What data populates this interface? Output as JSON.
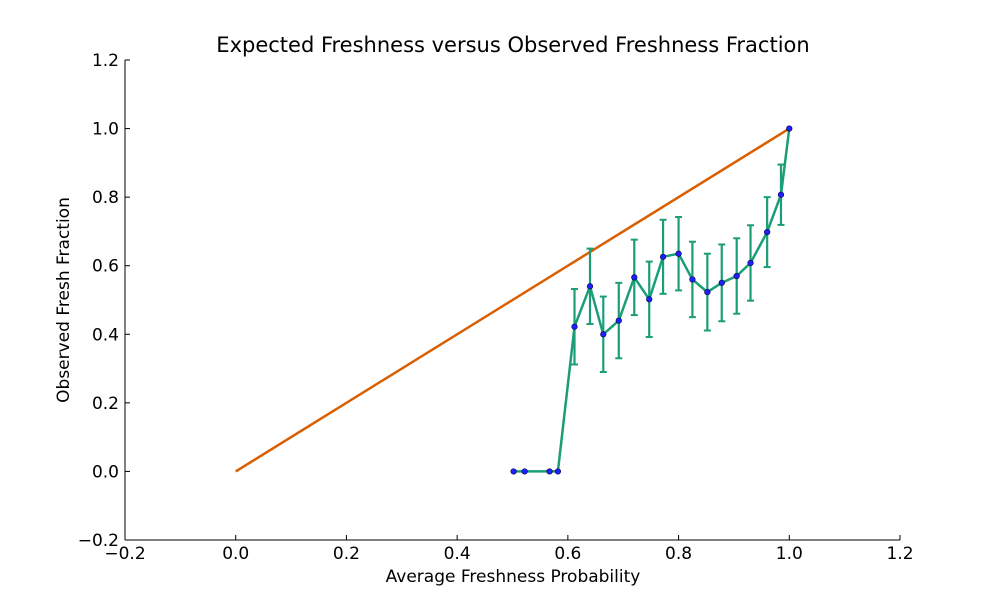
{
  "chart_data": {
    "type": "line",
    "title": "Expected Freshness versus Observed Freshness Fraction",
    "xlabel": "Average Freshness Probability",
    "ylabel": "Observed Fresh Fraction",
    "xlim": [
      -0.2,
      1.2
    ],
    "ylim": [
      -0.2,
      1.2
    ],
    "xticks": [
      -0.2,
      0.0,
      0.2,
      0.4,
      0.6,
      0.8,
      1.0,
      1.2
    ],
    "yticks": [
      -0.2,
      0.0,
      0.2,
      0.4,
      0.6,
      0.8,
      1.0,
      1.2
    ],
    "xtick_labels": [
      "−0.2",
      "0.0",
      "0.2",
      "0.4",
      "0.6",
      "0.8",
      "1.0",
      "1.2"
    ],
    "ytick_labels": [
      "−0.2",
      "0.0",
      "0.2",
      "0.4",
      "0.6",
      "0.8",
      "1.0",
      "1.2"
    ],
    "grid": false,
    "series": [
      {
        "x": [
          0.0,
          1.0
        ],
        "y": [
          0.0,
          1.0
        ],
        "color": "#d95f02"
      },
      {
        "x": [
          0.502,
          0.522,
          0.567,
          0.582,
          0.612,
          0.64,
          0.664,
          0.692,
          0.72,
          0.747,
          0.772,
          0.8,
          0.825,
          0.852,
          0.878,
          0.905,
          0.93,
          0.96,
          0.985,
          1.0
        ],
        "y": [
          0.0,
          0.0,
          0.0,
          0.0,
          0.422,
          0.54,
          0.4,
          0.44,
          0.566,
          0.502,
          0.626,
          0.635,
          0.56,
          0.523,
          0.55,
          0.57,
          0.608,
          0.698,
          0.807,
          1.0
        ],
        "yerr": [
          0,
          0,
          0,
          0,
          0.11,
          0.11,
          0.11,
          0.11,
          0.11,
          0.11,
          0.108,
          0.107,
          0.11,
          0.112,
          0.112,
          0.11,
          0.11,
          0.102,
          0.088,
          0
        ],
        "color": "#1b9e77",
        "marker_color": "#1f1fff"
      }
    ]
  }
}
